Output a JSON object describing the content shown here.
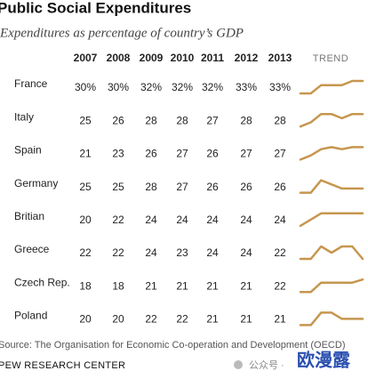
{
  "table": {
    "title": "Public Social Expenditures",
    "subtitle": "Expenditures as percentage of country’s GDP",
    "years": [
      2007,
      2008,
      2009,
      2010,
      2011,
      2012,
      2013
    ],
    "trend_header": "TREND",
    "trend_color": "#c6964f",
    "rows": [
      {
        "name": "France",
        "values": [
          30,
          30,
          32,
          32,
          32,
          33,
          33
        ],
        "value_labels": [
          "30%",
          "30%",
          "32%",
          "32%",
          "32%",
          "33%",
          "33%"
        ]
      },
      {
        "name": "Italy",
        "values": [
          25,
          26,
          28,
          28,
          27,
          28,
          28
        ]
      },
      {
        "name": "Spain",
        "values": [
          21,
          23,
          26,
          27,
          26,
          27,
          27
        ]
      },
      {
        "name": "Germany",
        "values": [
          25,
          25,
          28,
          27,
          26,
          26,
          26
        ]
      },
      {
        "name": "Britian",
        "values": [
          20,
          22,
          24,
          24,
          24,
          24,
          24
        ]
      },
      {
        "name": "Greece",
        "values": [
          22,
          22,
          24,
          23,
          24,
          24,
          22
        ]
      },
      {
        "name": "Czech Rep.",
        "values": [
          18,
          18,
          21,
          21,
          21,
          21,
          22
        ]
      },
      {
        "name": "Poland",
        "values": [
          20,
          20,
          22,
          22,
          21,
          21,
          21
        ]
      }
    ],
    "source": "Source: The Organisation for Economic Co-operation and Development (OECD)",
    "footer": "PEW RESEARCH CENTER",
    "watermark_label": "公众号 ·",
    "watermark_name": "欧漫露"
  }
}
